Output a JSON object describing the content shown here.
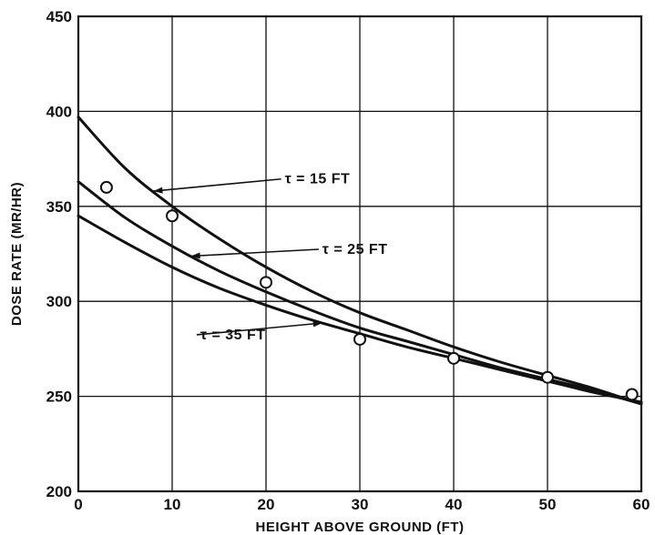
{
  "chart_data": {
    "type": "line",
    "xlabel": "HEIGHT ABOVE GROUND (FT)",
    "ylabel": "DOSE RATE (MR/HR)",
    "xlim": [
      0,
      60
    ],
    "ylim": [
      200,
      450
    ],
    "x_ticks": [
      "0",
      "10",
      "20",
      "30",
      "40",
      "50",
      "60"
    ],
    "y_ticks": [
      "200",
      "250",
      "300",
      "350",
      "400",
      "450"
    ],
    "grid": true,
    "series": [
      {
        "name": "τ = 15 FT",
        "x": [
          0,
          5,
          10,
          15,
          20,
          25,
          30,
          35,
          40,
          45,
          50,
          55,
          60
        ],
        "y": [
          397,
          370,
          350,
          333,
          318,
          305,
          294,
          285,
          276,
          268,
          261,
          254,
          246
        ]
      },
      {
        "name": "τ = 25 FT",
        "x": [
          0,
          5,
          10,
          15,
          20,
          25,
          30,
          35,
          40,
          45,
          50,
          55,
          60
        ],
        "y": [
          363,
          344,
          329,
          316,
          305,
          295,
          286,
          279,
          272,
          265,
          259,
          253,
          246
        ]
      },
      {
        "name": "τ = 35 FT",
        "x": [
          0,
          5,
          10,
          15,
          20,
          25,
          30,
          35,
          40,
          45,
          50,
          55,
          60
        ],
        "y": [
          345,
          331,
          318,
          307,
          298,
          290,
          283,
          276,
          270,
          264,
          258,
          252,
          247
        ]
      }
    ],
    "points": {
      "x": [
        3,
        10,
        20,
        30,
        40,
        50,
        59
      ],
      "y": [
        360,
        345,
        310,
        280,
        270,
        260,
        251
      ]
    },
    "labels": [
      {
        "text": "τ = 15 FT",
        "series": 0,
        "at_x": 8,
        "text_x": 22,
        "text_y": 362
      },
      {
        "text": "τ = 25 FT",
        "series": 1,
        "at_x": 12,
        "text_x": 26,
        "text_y": 325
      },
      {
        "text": "τ = 35 FT",
        "series": 2,
        "at_x": 26,
        "text_y": 280,
        "text_x": 13
      }
    ]
  }
}
